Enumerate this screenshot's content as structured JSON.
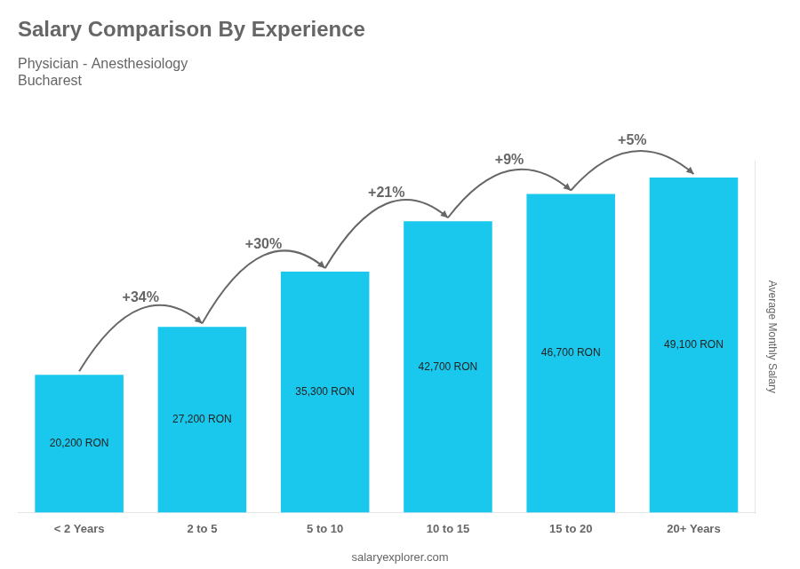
{
  "chart_data": {
    "type": "bar",
    "title": "Salary Comparison By Experience",
    "subtitle": [
      "Physician - Anesthesiology",
      "Bucharest"
    ],
    "ylabel": "Average Monthly Salary",
    "source": "salaryexplorer.com",
    "categories": [
      "< 2 Years",
      "2 to 5",
      "5 to 10",
      "10 to 15",
      "15 to 20",
      "20+ Years"
    ],
    "values": [
      20200,
      27200,
      35300,
      42700,
      46700,
      49100
    ],
    "value_labels": [
      "20,200 RON",
      "27,200 RON",
      "35,300 RON",
      "42,700 RON",
      "46,700 RON",
      "49,100 RON"
    ],
    "data_labels": true,
    "annotations": [
      "+34%",
      "+30%",
      "+21%",
      "+9%",
      "+5%"
    ],
    "color": "#1ac8ed",
    "ylim": [
      0,
      51555
    ],
    "grid": false,
    "tick_labels": "x"
  }
}
